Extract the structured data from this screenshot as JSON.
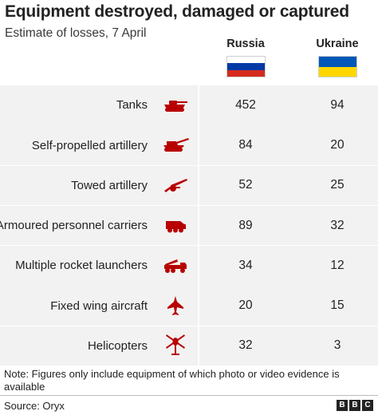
{
  "header": {
    "title": "Equipment destroyed, damaged or captured",
    "subtitle": "Estimate of losses, 7 April"
  },
  "columns": {
    "russia": "Russia",
    "ukraine": "Ukraine"
  },
  "flags": {
    "russia": [
      "#ffffff",
      "#0039a6",
      "#d52b1e"
    ],
    "ukraine": [
      "#0057b7",
      "#ffd700"
    ]
  },
  "colors": {
    "icon": "#b80000",
    "row_background": "#f2f2f2"
  },
  "chart_data": {
    "type": "table",
    "title": "Equipment destroyed, damaged or captured",
    "subtitle": "Estimate of losses, 7 April",
    "columns": [
      "Russia",
      "Ukraine"
    ],
    "rows": [
      {
        "category": "Tanks",
        "icon": "tank-icon",
        "russia": 452,
        "ukraine": 94
      },
      {
        "category": "Self-propelled artillery",
        "icon": "self-propelled-artillery-icon",
        "russia": 84,
        "ukraine": 20
      },
      {
        "category": "Towed artillery",
        "icon": "towed-artillery-icon",
        "russia": 52,
        "ukraine": 25
      },
      {
        "category": "Armoured personnel carriers",
        "icon": "armoured-carrier-icon",
        "russia": 89,
        "ukraine": 32
      },
      {
        "category": "Multiple rocket launchers",
        "icon": "rocket-launcher-icon",
        "russia": 34,
        "ukraine": 12
      },
      {
        "category": "Fixed wing aircraft",
        "icon": "fixed-wing-aircraft-icon",
        "russia": 20,
        "ukraine": 15
      },
      {
        "category": "Helicopters",
        "icon": "helicopter-icon",
        "russia": 32,
        "ukraine": 3
      }
    ]
  },
  "footer": {
    "note": "Note: Figures only include equipment of which photo or video evidence is available",
    "source": "Source: Oryx",
    "logo_letters": [
      "B",
      "B",
      "C"
    ]
  }
}
